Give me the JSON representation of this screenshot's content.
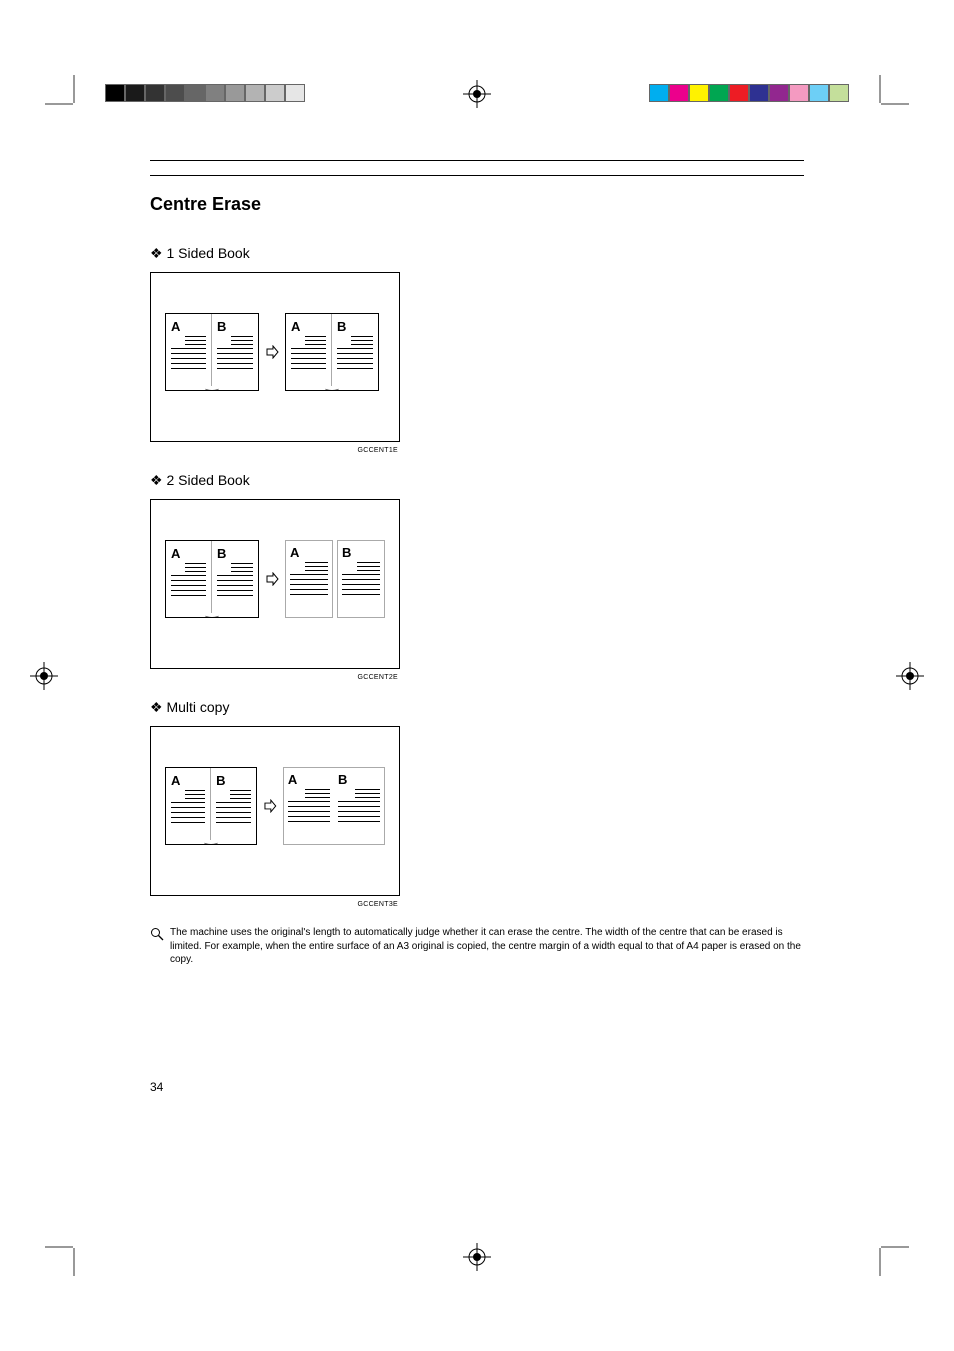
{
  "header": {
    "section_title": "Centre Erase"
  },
  "items": [
    {
      "label": "❖ 1 Sided Book",
      "caption": "GCCENT1E",
      "type": "1side",
      "left_book": {
        "pages": [
          "A",
          "B"
        ]
      },
      "right": {
        "kind": "book",
        "pages": [
          "A",
          "B"
        ]
      }
    },
    {
      "label": "❖ 2 Sided Book",
      "caption": "GCCENT2E",
      "type": "2side",
      "left_book": {
        "pages": [
          "A",
          "B"
        ]
      },
      "right": {
        "kind": "sheets2",
        "sheets": [
          "A",
          "B"
        ]
      }
    },
    {
      "label": "❖ Multi copy",
      "caption": "GCCENT3E",
      "type": "multi",
      "left_book": {
        "pages": [
          "A",
          "B"
        ]
      },
      "right": {
        "kind": "sheet1",
        "sheets": [
          "A",
          "B"
        ]
      }
    }
  ],
  "note": {
    "text": "The machine uses the original's length to automatically judge whether it can erase the centre. The width of the centre that can be erased is limited. For example, when the entire surface of an A3 original is copied, the centre margin of a width equal to that of A4 paper is erased on the copy."
  },
  "page_number": "34",
  "colors": {
    "gray_bar": [
      "#000000",
      "#1a1a1a",
      "#333333",
      "#4d4d4d",
      "#666666",
      "#808080",
      "#999999",
      "#b3b3b3",
      "#cccccc",
      "#e6e6e6"
    ],
    "color_bar": [
      "#00aeef",
      "#ec008c",
      "#fff200",
      "#00a651",
      "#ed1c24",
      "#2e3192",
      "#92278f",
      "#f49ac1",
      "#6dcff6",
      "#c4df9b"
    ]
  }
}
